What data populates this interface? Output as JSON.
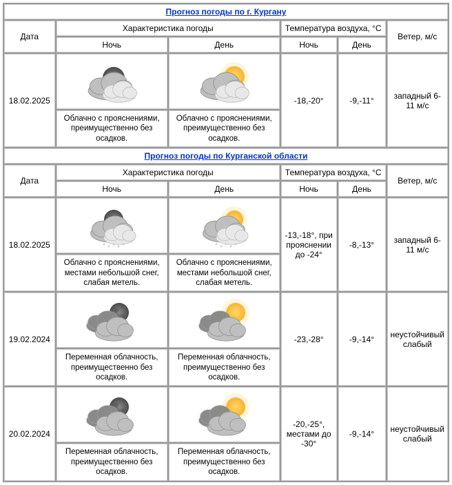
{
  "headers": {
    "date": "Дата",
    "weather_char": "Характеристика погоды",
    "temp": "Температура воздуха, °C",
    "wind": "Ветер, м/с",
    "night": "Ночь",
    "day": "День"
  },
  "sections": [
    {
      "title": "Прогноз погоды по г. Кургану",
      "rows": [
        {
          "date": "18.02.2025",
          "night_icon": "cloudy-moon",
          "day_icon": "cloudy-sun",
          "night_desc": "Облачно с прояснениями, преимущественно без осадков.",
          "day_desc": "Облачно с прояснениями, преимущественно без осадков.",
          "temp_night": "-18,-20°",
          "temp_day": "-9,-11°",
          "wind": "западный 6-11 м/с"
        }
      ]
    },
    {
      "title": "Прогноз погоды по Курганской области",
      "rows": [
        {
          "date": "18.02.2025",
          "night_icon": "cloudy-moon-snow",
          "day_icon": "cloudy-sun-snow",
          "night_desc": "Облачно с прояснениями, местами небольшой снег, слабая метель.",
          "day_desc": "Облачно с прояснениями, местами небольшой снег, слабая метель.",
          "temp_night": "-13,-18°, при прояснении до -24°",
          "temp_day": "-8,-13°",
          "wind": "западный 6-11 м/с"
        },
        {
          "date": "19.02.2024",
          "night_icon": "partly-moon",
          "day_icon": "partly-sun",
          "night_desc": "Переменная облачность, преимущественно без осадков.",
          "day_desc": "Переменная облачность, преимущественно без осадков.",
          "temp_night": "-23,-28°",
          "temp_day": "-9,-14°",
          "wind": "неустойчивый слабый"
        },
        {
          "date": "20.02.2024",
          "night_icon": "partly-moon",
          "day_icon": "partly-sun",
          "night_desc": "Переменная облачность, преимущественно без осадков.",
          "day_desc": "Переменная облачность, преимущественно без осадков.",
          "temp_night": "-20,-25°, местами до -30°",
          "temp_day": "-9,-14°",
          "wind": "неустойчивый слабый"
        }
      ]
    }
  ],
  "icons": {
    "colors": {
      "moon": "#4a4a4a",
      "moon_light": "#888",
      "sun": "#f9b233",
      "sun_glow": "#ffd965",
      "cloud_light": "#e8e8e8",
      "cloud_mid": "#bfbfbf",
      "cloud_dark": "#9a9a9a",
      "cloud_back": "#8a8a8a",
      "snow": "#d0d0d0"
    }
  }
}
